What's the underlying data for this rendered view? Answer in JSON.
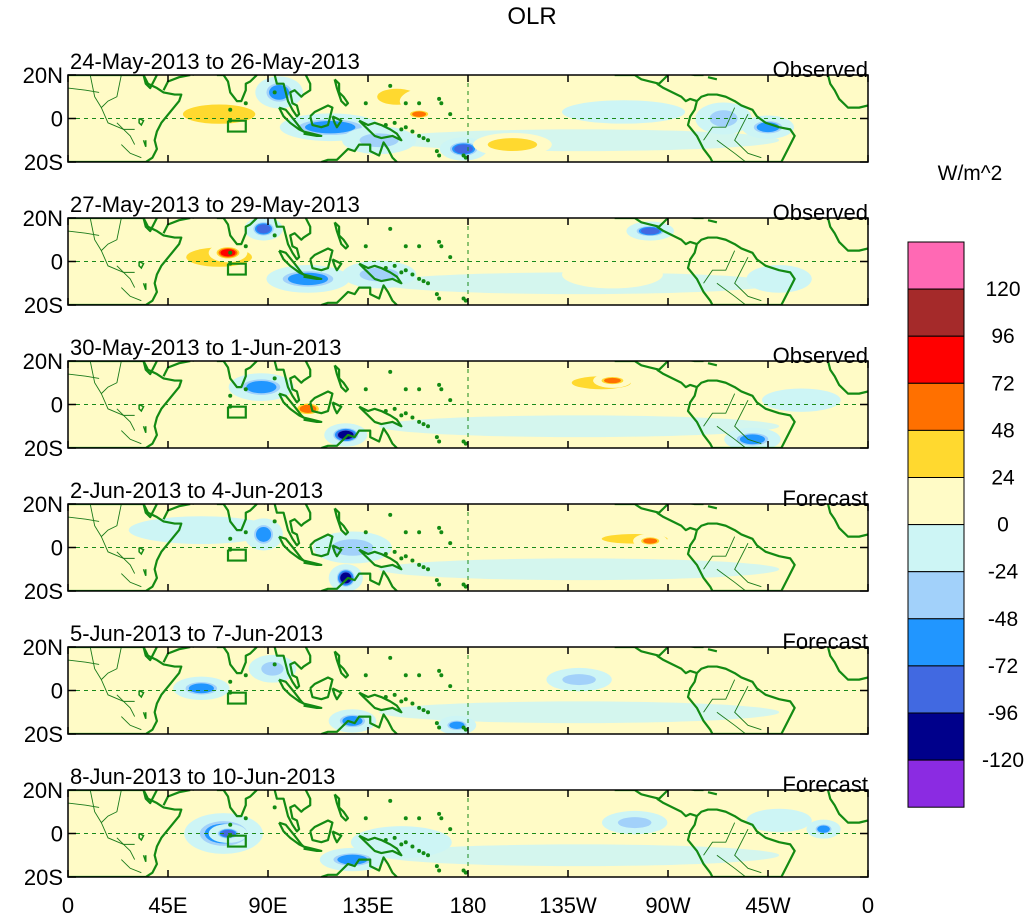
{
  "chart_data": {
    "type": "heatmap",
    "title": "OLR",
    "units": "W/m^2",
    "xlabel": "",
    "ylabel": "",
    "x_ticks": [
      "0",
      "45E",
      "90E",
      "135E",
      "180",
      "135W",
      "90W",
      "45W",
      "0"
    ],
    "x_range_deg_east": [
      0,
      360
    ],
    "y_ticks": [
      "20N",
      "0",
      "20S"
    ],
    "y_range_deg_lat": [
      -20,
      20
    ],
    "colorbar": {
      "levels": [
        -120,
        -96,
        -72,
        -48,
        -24,
        0,
        24,
        48,
        72,
        96,
        120
      ],
      "labels": [
        "120",
        "96",
        "72",
        "48",
        "24",
        "0",
        "-24",
        "-48",
        "-72",
        "-96",
        "-120"
      ],
      "colors_top_to_bottom": [
        "#ff69b4",
        "#a52a2a",
        "#ff0000",
        "#ff7000",
        "#ffd92f",
        "#fffbc6",
        "#cdf5f5",
        "#a2d1fa",
        "#2196ff",
        "#4169e1",
        "#00008b",
        "#8b2be2"
      ]
    },
    "panels": [
      {
        "period": "24-May-2013 to 26-May-2013",
        "kind": "Observed",
        "anomalies": [
          {
            "lon": 30,
            "lat": 5,
            "value": 24,
            "rx": 25,
            "ry": 5
          },
          {
            "lon": 68,
            "lat": 2,
            "value": 48,
            "rx": 22,
            "ry": 6
          },
          {
            "lon": 95,
            "lat": 12,
            "value": -72,
            "rx": 8,
            "ry": 6
          },
          {
            "lon": 118,
            "lat": -4,
            "value": -72,
            "rx": 20,
            "ry": 5
          },
          {
            "lon": 140,
            "lat": -10,
            "value": -48,
            "rx": 14,
            "ry": 5
          },
          {
            "lon": 148,
            "lat": 10,
            "value": 48,
            "rx": 12,
            "ry": 5
          },
          {
            "lon": 170,
            "lat": 8,
            "value": 24,
            "rx": 18,
            "ry": 6
          },
          {
            "lon": 158,
            "lat": 2,
            "value": 72,
            "rx": 5,
            "ry": 2
          },
          {
            "lon": 178,
            "lat": -14,
            "value": -96,
            "rx": 8,
            "ry": 4
          },
          {
            "lon": 200,
            "lat": -12,
            "value": 48,
            "rx": 15,
            "ry": 4
          },
          {
            "lon": 250,
            "lat": 3,
            "value": -24,
            "rx": 25,
            "ry": 4
          },
          {
            "lon": 295,
            "lat": 0,
            "value": -48,
            "rx": 10,
            "ry": 6
          },
          {
            "lon": 315,
            "lat": -4,
            "value": -72,
            "rx": 9,
            "ry": 4
          },
          {
            "lon": 345,
            "lat": 2,
            "value": 24,
            "rx": 15,
            "ry": 4
          }
        ]
      },
      {
        "period": "27-May-2013 to 29-May-2013",
        "kind": "Observed",
        "anomalies": [
          {
            "lon": 68,
            "lat": 2,
            "value": 48,
            "rx": 20,
            "ry": 6
          },
          {
            "lon": 72,
            "lat": 4,
            "value": 96,
            "rx": 6,
            "ry": 3
          },
          {
            "lon": 88,
            "lat": 15,
            "value": -96,
            "rx": 6,
            "ry": 4
          },
          {
            "lon": 108,
            "lat": -8,
            "value": -72,
            "rx": 16,
            "ry": 5
          },
          {
            "lon": 140,
            "lat": -6,
            "value": -48,
            "rx": 14,
            "ry": 5
          },
          {
            "lon": 170,
            "lat": 8,
            "value": 24,
            "rx": 15,
            "ry": 5
          },
          {
            "lon": 245,
            "lat": -6,
            "value": 24,
            "rx": 20,
            "ry": 5
          },
          {
            "lon": 262,
            "lat": 14,
            "value": -96,
            "rx": 8,
            "ry": 3
          },
          {
            "lon": 320,
            "lat": -8,
            "value": -24,
            "rx": 12,
            "ry": 5
          }
        ]
      },
      {
        "period": "30-May-2013 to 1-Jun-2013",
        "kind": "Observed",
        "anomalies": [
          {
            "lon": 87,
            "lat": 8,
            "value": -72,
            "rx": 12,
            "ry": 5
          },
          {
            "lon": 108,
            "lat": -2,
            "value": 72,
            "rx": 6,
            "ry": 3
          },
          {
            "lon": 125,
            "lat": -14,
            "value": -120,
            "rx": 7,
            "ry": 4
          },
          {
            "lon": 150,
            "lat": 8,
            "value": 24,
            "rx": 15,
            "ry": 6
          },
          {
            "lon": 188,
            "lat": 12,
            "value": 24,
            "rx": 25,
            "ry": 5
          },
          {
            "lon": 240,
            "lat": 10,
            "value": 48,
            "rx": 18,
            "ry": 4
          },
          {
            "lon": 245,
            "lat": 11,
            "value": 72,
            "rx": 6,
            "ry": 2
          },
          {
            "lon": 308,
            "lat": -16,
            "value": -72,
            "rx": 10,
            "ry": 4
          },
          {
            "lon": 330,
            "lat": 2,
            "value": -24,
            "rx": 15,
            "ry": 4
          }
        ]
      },
      {
        "period": "2-Jun-2013 to 4-Jun-2013",
        "kind": "Forecast",
        "anomalies": [
          {
            "lon": 60,
            "lat": 8,
            "value": -24,
            "rx": 30,
            "ry": 5
          },
          {
            "lon": 88,
            "lat": 6,
            "value": -72,
            "rx": 6,
            "ry": 6
          },
          {
            "lon": 118,
            "lat": 10,
            "value": 24,
            "rx": 15,
            "ry": 5
          },
          {
            "lon": 125,
            "lat": -14,
            "value": -120,
            "rx": 5,
            "ry": 5
          },
          {
            "lon": 128,
            "lat": 0,
            "value": -48,
            "rx": 15,
            "ry": 6
          },
          {
            "lon": 255,
            "lat": 4,
            "value": 48,
            "rx": 20,
            "ry": 3
          },
          {
            "lon": 262,
            "lat": 3,
            "value": 72,
            "rx": 5,
            "ry": 2
          },
          {
            "lon": 320,
            "lat": -2,
            "value": 24,
            "rx": 15,
            "ry": 4
          }
        ]
      },
      {
        "period": "5-Jun-2013 to 7-Jun-2013",
        "kind": "Forecast",
        "anomalies": [
          {
            "lon": 60,
            "lat": 1,
            "value": -72,
            "rx": 10,
            "ry": 4
          },
          {
            "lon": 92,
            "lat": 10,
            "value": -48,
            "rx": 8,
            "ry": 5
          },
          {
            "lon": 118,
            "lat": 2,
            "value": 24,
            "rx": 15,
            "ry": 6
          },
          {
            "lon": 128,
            "lat": -14,
            "value": -72,
            "rx": 8,
            "ry": 4
          },
          {
            "lon": 175,
            "lat": -16,
            "value": -72,
            "rx": 6,
            "ry": 3
          },
          {
            "lon": 230,
            "lat": 5,
            "value": -48,
            "rx": 12,
            "ry": 4
          },
          {
            "lon": 280,
            "lat": 5,
            "value": 24,
            "rx": 15,
            "ry": 4
          },
          {
            "lon": 300,
            "lat": 2,
            "value": 24,
            "rx": 12,
            "ry": 4
          }
        ]
      },
      {
        "period": "8-Jun-2013 to 10-Jun-2013",
        "kind": "Forecast",
        "anomalies": [
          {
            "lon": 70,
            "lat": 0,
            "value": -72,
            "rx": 15,
            "ry": 8
          },
          {
            "lon": 72,
            "lat": 0,
            "value": -96,
            "rx": 6,
            "ry": 3
          },
          {
            "lon": 118,
            "lat": 6,
            "value": 24,
            "rx": 18,
            "ry": 6
          },
          {
            "lon": 128,
            "lat": -12,
            "value": -72,
            "rx": 12,
            "ry": 4
          },
          {
            "lon": 150,
            "lat": -4,
            "value": -24,
            "rx": 20,
            "ry": 6
          },
          {
            "lon": 255,
            "lat": 5,
            "value": -48,
            "rx": 12,
            "ry": 4
          },
          {
            "lon": 275,
            "lat": 14,
            "value": 24,
            "rx": 15,
            "ry": 4
          },
          {
            "lon": 320,
            "lat": 6,
            "value": -24,
            "rx": 12,
            "ry": 4
          },
          {
            "lon": 340,
            "lat": 2,
            "value": -72,
            "rx": 5,
            "ry": 3
          }
        ]
      }
    ]
  }
}
